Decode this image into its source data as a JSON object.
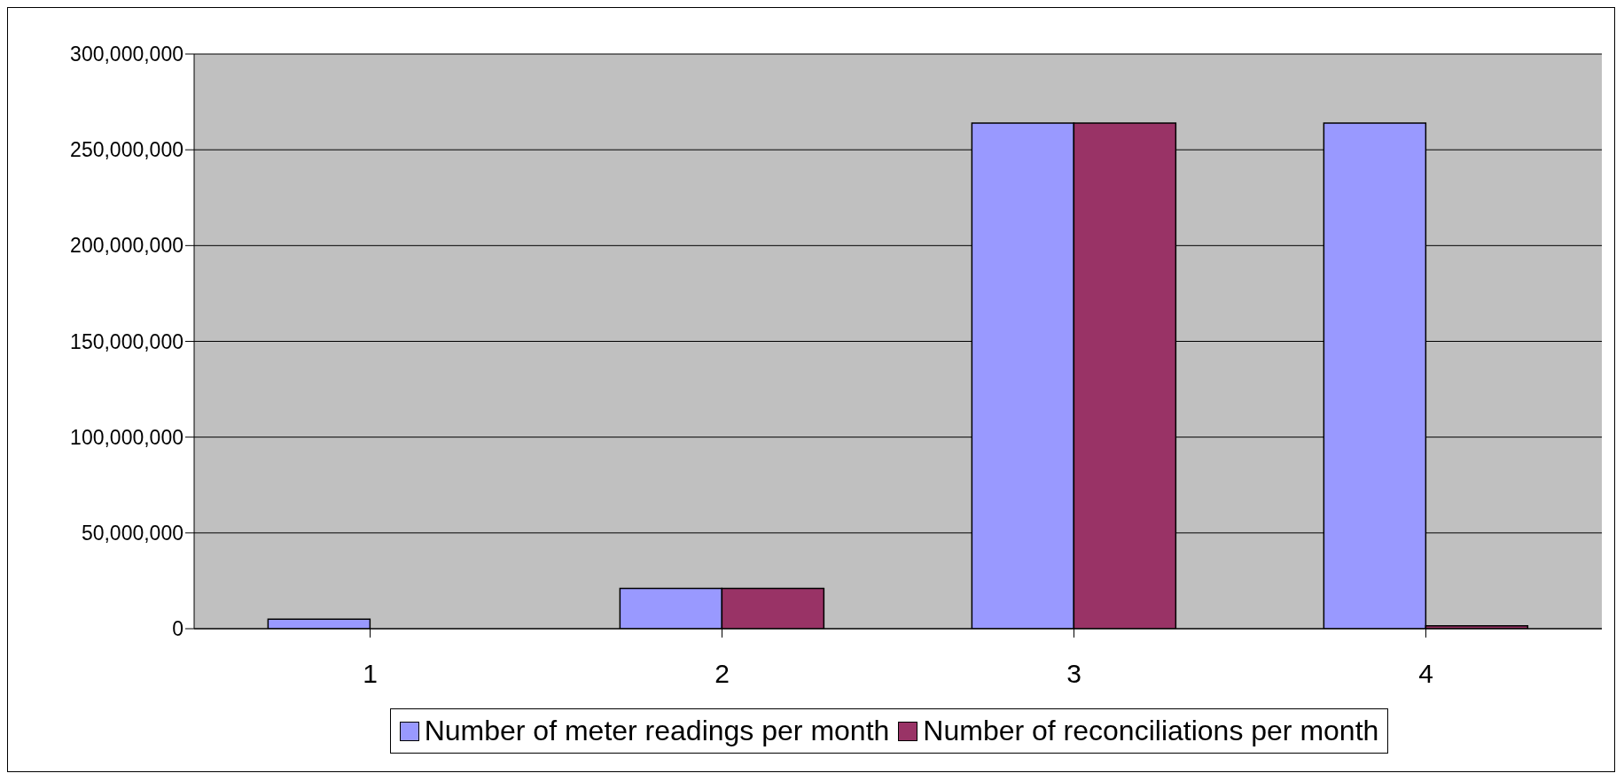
{
  "chart_data": {
    "type": "bar",
    "categories": [
      "1",
      "2",
      "3",
      "4"
    ],
    "series": [
      {
        "name": "Number of meter readings per month",
        "color": "#9999ff",
        "values": [
          5000000,
          21000000,
          264000000,
          264000000
        ]
      },
      {
        "name": "Number of reconciliations per month",
        "color": "#993366",
        "values": [
          0,
          21000000,
          264000000,
          1500000
        ]
      }
    ],
    "ylim": [
      0,
      300000000
    ],
    "yticks": [
      0,
      {
        "value": 50000000,
        "label": "50,000,000"
      },
      {
        "value": 100000000,
        "label": "100,000,000"
      },
      {
        "value": 150000000,
        "label": "150,000,000"
      },
      {
        "value": 200000000,
        "label": "200,000,000"
      },
      {
        "value": 250000000,
        "label": "250,000,000"
      },
      {
        "value": 300000000,
        "label": "300,000,000"
      }
    ],
    "grid": "y",
    "legend": "bottom"
  }
}
